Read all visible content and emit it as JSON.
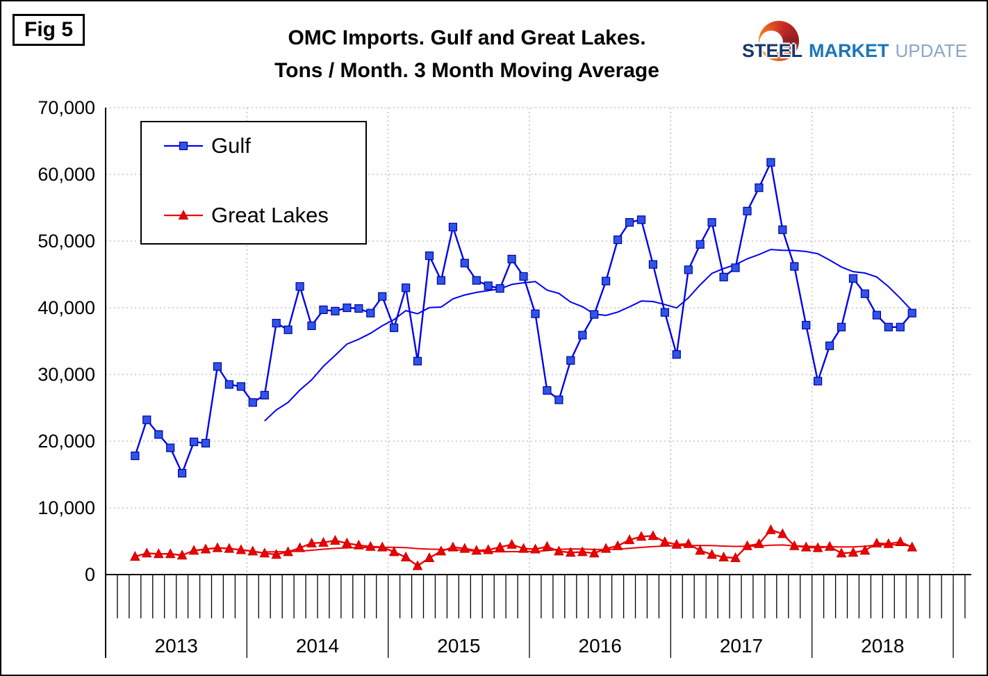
{
  "figure_label": "Fig 5",
  "title": {
    "line1": "OMC Imports. Gulf and Great Lakes.",
    "line2": "Tons / Month. 3 Month Moving Average"
  },
  "logo": {
    "word1": "STEEL",
    "word2": "MARKET",
    "word3": "UPDATE"
  },
  "chart_data": {
    "type": "line",
    "title": "OMC Imports. Gulf and Great Lakes. Tons / Month. 3 Month Moving Average",
    "xlabel": "",
    "ylabel": "",
    "ylim": [
      0,
      70000
    ],
    "ytick_step": 10000,
    "ytick_labels": [
      "0",
      "10,000",
      "20,000",
      "30,000",
      "40,000",
      "50,000",
      "60,000",
      "70,000"
    ],
    "x_years": [
      "2013",
      "2014",
      "2015",
      "2016",
      "2017",
      "2018"
    ],
    "start_month_index": 2,
    "trend_window": 12,
    "grid": "dotted",
    "legend_position": "top-left",
    "series": [
      {
        "name": "Gulf",
        "color": "#0000ee",
        "marker": "square",
        "marker_fill": "#2f55e8",
        "marker_stroke": "#0000a0",
        "values": [
          17800,
          23200,
          21000,
          19000,
          15200,
          19900,
          19700,
          31200,
          28500,
          28200,
          25800,
          26900,
          37700,
          36700,
          43200,
          37300,
          39700,
          39500,
          40000,
          39900,
          39200,
          41700,
          37000,
          43000,
          32000,
          47800,
          44100,
          52100,
          46700,
          44100,
          43300,
          42900,
          47300,
          44700,
          39100,
          27600,
          26200,
          32100,
          35900,
          39000,
          44000,
          50200,
          52800,
          53200,
          46500,
          39300,
          33000,
          45700,
          49500,
          52800,
          44600,
          46000,
          54500,
          58000,
          61800,
          51700,
          46200,
          37400,
          29000,
          34300,
          37100,
          44400,
          42100,
          38900,
          37100,
          37100,
          39200
        ]
      },
      {
        "name": "Great Lakes",
        "color": "#ee0000",
        "marker": "triangle",
        "marker_fill": "#ee0000",
        "marker_stroke": "#c00000",
        "values": [
          2700,
          3200,
          3100,
          3100,
          2900,
          3600,
          3800,
          4000,
          3900,
          3700,
          3500,
          3200,
          3000,
          3400,
          4000,
          4700,
          4800,
          5100,
          4700,
          4400,
          4200,
          4100,
          3400,
          2600,
          1300,
          2500,
          3500,
          4100,
          3900,
          3600,
          3700,
          4100,
          4500,
          3900,
          3800,
          4200,
          3500,
          3300,
          3400,
          3200,
          3900,
          4300,
          5200,
          5700,
          5800,
          4900,
          4500,
          4600,
          3600,
          3000,
          2600,
          2500,
          4300,
          4600,
          6700,
          6100,
          4300,
          4100,
          4000,
          4200,
          3200,
          3300,
          3600,
          4700,
          4600,
          4900,
          4100
        ]
      }
    ]
  }
}
